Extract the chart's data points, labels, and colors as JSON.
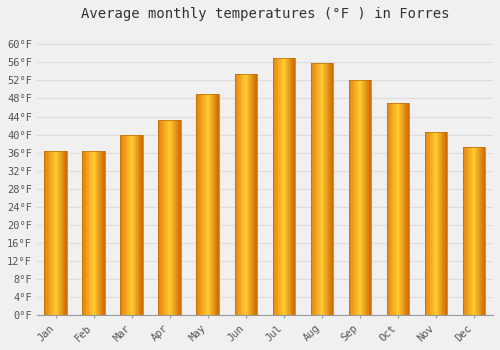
{
  "title": "Average monthly temperatures (°F ) in Forres",
  "months": [
    "Jan",
    "Feb",
    "Mar",
    "Apr",
    "May",
    "Jun",
    "Jul",
    "Aug",
    "Sep",
    "Oct",
    "Nov",
    "Dec"
  ],
  "values": [
    36.3,
    36.3,
    39.9,
    43.3,
    49.1,
    53.4,
    57.0,
    55.9,
    52.0,
    47.1,
    40.6,
    37.2
  ],
  "bar_color_left": "#E8820C",
  "bar_color_mid": "#FFCC33",
  "bar_color_right": "#CC6600",
  "background_color": "#F0F0F0",
  "grid_color": "#DDDDDD",
  "title_fontsize": 10,
  "tick_fontsize": 7.5,
  "ytick_start": 0,
  "ytick_end": 60,
  "ytick_step": 4,
  "ylim": [
    0,
    64
  ]
}
